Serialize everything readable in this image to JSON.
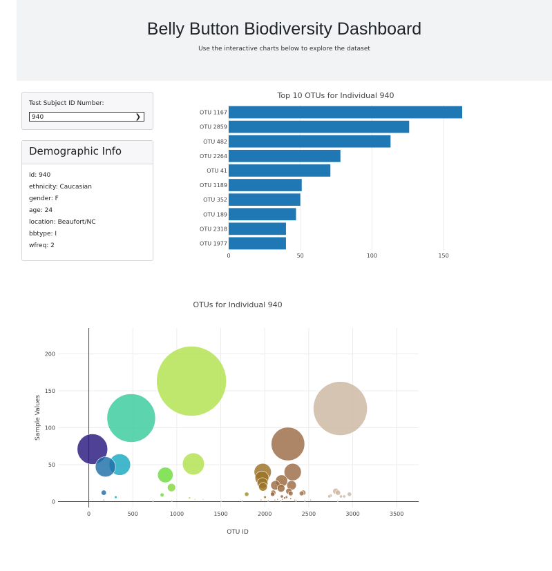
{
  "header": {
    "title": "Belly Button Biodiversity Dashboard",
    "subtitle": "Use the interactive charts below to explore the dataset"
  },
  "selector": {
    "label": "Test Subject ID Number:",
    "value": "940",
    "icon": "chevron-down-icon"
  },
  "demographics": {
    "title": "Demographic Info",
    "rows": [
      "id: 940",
      "ethnicity: Caucasian",
      "gender: F",
      "age: 24",
      "location: Beaufort/NC",
      "bbtype: I",
      "wfreq: 2"
    ]
  },
  "colors": {
    "bar": "#1f77b4",
    "grid": "#ececec",
    "axis": "#444444",
    "tick_text": "#444444"
  },
  "chart_data": [
    {
      "type": "bar",
      "orientation": "horizontal",
      "title": "Top 10 OTUs for Individual 940",
      "categories": [
        "OTU 1167",
        "OTU 2859",
        "OTU 482",
        "OTU 2264",
        "OTU 41",
        "OTU 1189",
        "OTU 352",
        "OTU 189",
        "OTU 2318",
        "OTU 1977"
      ],
      "values": [
        163,
        126,
        113,
        78,
        71,
        51,
        50,
        47,
        40,
        40
      ],
      "xlim": [
        0,
        163
      ],
      "xticks": [
        0,
        50,
        100,
        150
      ],
      "grid": true
    },
    {
      "type": "scatter",
      "subtype": "bubble",
      "title": "OTUs for Individual 940",
      "xlabel": "OTU ID",
      "ylabel": "Sample Values",
      "xlim": [
        -350,
        3750
      ],
      "ylim": [
        -8,
        235
      ],
      "xticks": [
        0,
        500,
        1000,
        1500,
        2000,
        2500,
        3000,
        3500
      ],
      "yticks": [
        0,
        50,
        100,
        150,
        200
      ],
      "grid": true,
      "points": [
        {
          "x": 1167,
          "y": 163,
          "color": "#b1e24e"
        },
        {
          "x": 2859,
          "y": 126,
          "color": "#cdb7a2"
        },
        {
          "x": 482,
          "y": 113,
          "color": "#38cb9b"
        },
        {
          "x": 2264,
          "y": 78,
          "color": "#9a6b45"
        },
        {
          "x": 41,
          "y": 71,
          "color": "#28197f"
        },
        {
          "x": 1189,
          "y": 51,
          "color": "#b1e24e"
        },
        {
          "x": 352,
          "y": 50,
          "color": "#1aa7c1"
        },
        {
          "x": 189,
          "y": 47,
          "color": "#1d6fa8"
        },
        {
          "x": 2318,
          "y": 40,
          "color": "#9a6b45"
        },
        {
          "x": 1977,
          "y": 40,
          "color": "#9b7323"
        },
        {
          "x": 870,
          "y": 36,
          "color": "#6cdc3a"
        },
        {
          "x": 1968,
          "y": 32,
          "color": "#9b7323"
        },
        {
          "x": 2191,
          "y": 28,
          "color": "#99693c"
        },
        {
          "x": 1975,
          "y": 25,
          "color": "#9b7323"
        },
        {
          "x": 2122,
          "y": 22,
          "color": "#9a6b45"
        },
        {
          "x": 2305,
          "y": 22,
          "color": "#9a6b45"
        },
        {
          "x": 1980,
          "y": 20,
          "color": "#9b7323"
        },
        {
          "x": 940,
          "y": 19,
          "color": "#84d83e"
        },
        {
          "x": 2186,
          "y": 18,
          "color": "#99693c"
        },
        {
          "x": 2274,
          "y": 14,
          "color": "#9a6b45"
        },
        {
          "x": 2807,
          "y": 14,
          "color": "#cdb7a2"
        },
        {
          "x": 170,
          "y": 12,
          "color": "#1d6fa8"
        },
        {
          "x": 2833,
          "y": 12,
          "color": "#cdb7a2"
        },
        {
          "x": 2438,
          "y": 12,
          "color": "#a37d58"
        },
        {
          "x": 2097,
          "y": 12,
          "color": "#9a6b45"
        },
        {
          "x": 2419,
          "y": 11,
          "color": "#a37d58"
        },
        {
          "x": 2295,
          "y": 11,
          "color": "#9a6b45"
        },
        {
          "x": 1795,
          "y": 10,
          "color": "#a39320"
        },
        {
          "x": 2963,
          "y": 10,
          "color": "#cdb7a2"
        },
        {
          "x": 2090,
          "y": 10,
          "color": "#9a6b45"
        },
        {
          "x": 833,
          "y": 9,
          "color": "#6cdc3a"
        },
        {
          "x": 2748,
          "y": 8,
          "color": "#cdb7a2"
        },
        {
          "x": 2195,
          "y": 7,
          "color": "#99693c"
        },
        {
          "x": 2866,
          "y": 7,
          "color": "#cdb7a2"
        },
        {
          "x": 2734,
          "y": 7,
          "color": "#cdb7a2"
        },
        {
          "x": 2904,
          "y": 7,
          "color": "#cdb7a2"
        },
        {
          "x": 306,
          "y": 6,
          "color": "#1aa7c1"
        },
        {
          "x": 2003,
          "y": 6,
          "color": "#9b7323"
        },
        {
          "x": 2247,
          "y": 6,
          "color": "#9a6b45"
        },
        {
          "x": 2226,
          "y": 5,
          "color": "#99693c"
        },
        {
          "x": 1145,
          "y": 5,
          "color": "#b1e24e"
        },
        {
          "x": 2295,
          "y": 4,
          "color": "#9a6b45"
        },
        {
          "x": 1299,
          "y": 3,
          "color": "#b8e45c"
        },
        {
          "x": 2146,
          "y": 3,
          "color": "#99693c"
        },
        {
          "x": 1208,
          "y": 3,
          "color": "#b1e24e"
        },
        {
          "x": 2200,
          "y": 3,
          "color": "#99693c"
        },
        {
          "x": 2341,
          "y": 2,
          "color": "#9a6b45"
        },
        {
          "x": 170,
          "y": 2,
          "color": "#1d6fa8"
        },
        {
          "x": 2522,
          "y": 2,
          "color": "#a37d58"
        },
        {
          "x": 1959,
          "y": 2,
          "color": "#9b7323"
        },
        {
          "x": 2115,
          "y": 2,
          "color": "#9a6b45"
        },
        {
          "x": 1743,
          "y": 1,
          "color": "#a39320"
        },
        {
          "x": 730,
          "y": 1,
          "color": "#5fd54b"
        },
        {
          "x": 2457,
          "y": 1,
          "color": "#a37d58"
        },
        {
          "x": 2040,
          "y": 1,
          "color": "#9b7323"
        },
        {
          "x": 2356,
          "y": 1,
          "color": "#9a6b45"
        },
        {
          "x": 943,
          "y": 1,
          "color": "#84d83e"
        },
        {
          "x": 1505,
          "y": 1,
          "color": "#c0e06a"
        },
        {
          "x": 2182,
          "y": 1,
          "color": "#99693c"
        },
        {
          "x": 2830,
          "y": 1,
          "color": "#cdb7a2"
        }
      ]
    }
  ]
}
